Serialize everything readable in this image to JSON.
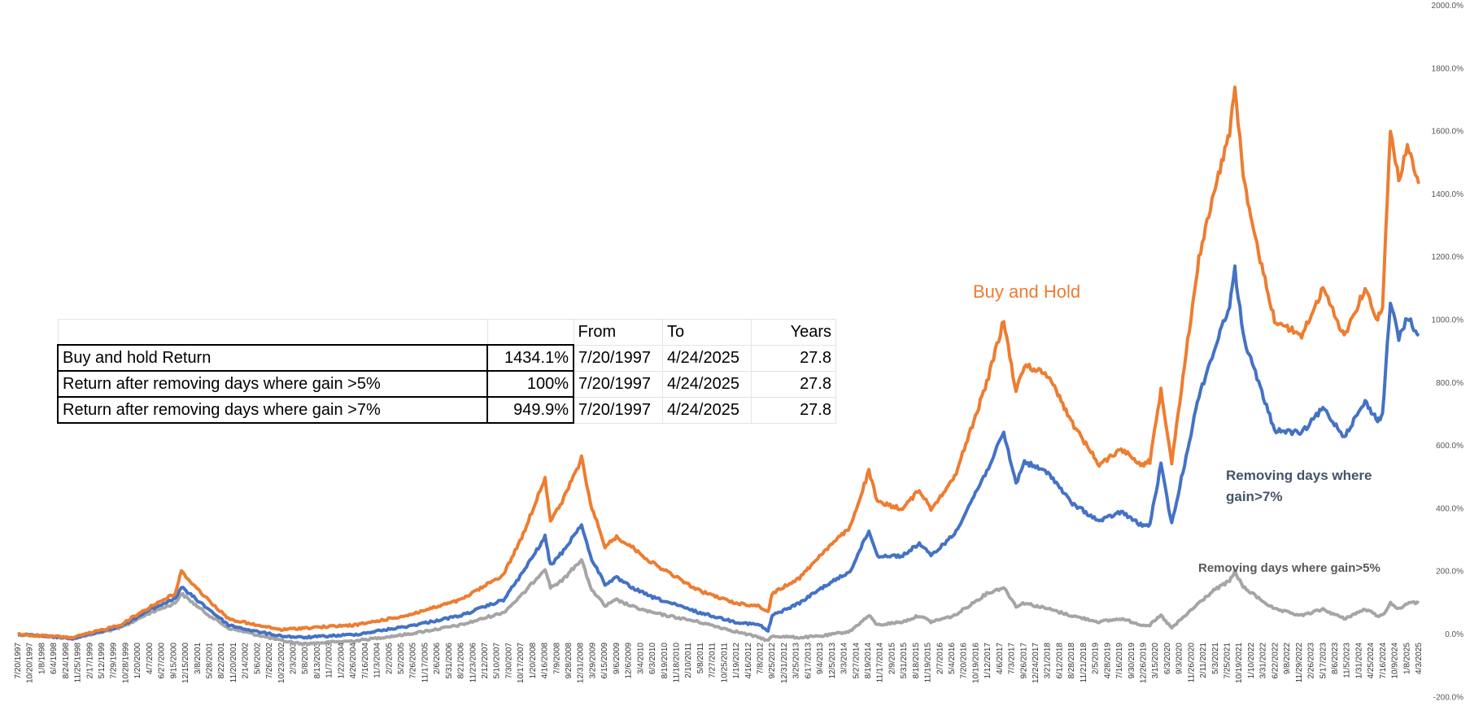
{
  "chart_data": {
    "type": "line",
    "title": "",
    "xlabel": "",
    "ylabel": "",
    "ylim": [
      -200,
      2000
    ],
    "ytick_values": [
      -200,
      0,
      200,
      400,
      600,
      800,
      1000,
      1200,
      1400,
      1600,
      1800,
      2000
    ],
    "ytick_labels": [
      "-200.0%",
      "0.0%",
      "200.0%",
      "400.0%",
      "600.0%",
      "800.0%",
      "1000.0%",
      "1200.0%",
      "1400.0%",
      "1600.0%",
      "1800.0%",
      "2000.0%"
    ],
    "grid": false,
    "legend": "none",
    "xlim": [
      "1997-07-20",
      "2025-04-24"
    ],
    "x_tick_labels": [
      "7/20/1997",
      "10/20/1997",
      "1/8/1998",
      "6/4/1998",
      "8/24/1998",
      "11/25/1998",
      "2/17/1999",
      "5/12/1999",
      "7/29/1999",
      "10/28/1999",
      "1/20/2000",
      "4/7/2000",
      "6/27/2000",
      "9/15/2000",
      "12/15/2000",
      "3/8/2001",
      "5/28/2001",
      "8/22/2001",
      "11/20/2001",
      "2/14/2002",
      "5/6/2002",
      "7/26/2002",
      "10/23/2002",
      "2/3/2003",
      "5/8/2003",
      "8/13/2003",
      "11/7/2003",
      "1/22/2004",
      "4/26/2004",
      "7/16/2004",
      "11/3/2004",
      "2/2/2005",
      "5/2/2005",
      "7/26/2005",
      "11/17/2005",
      "2/6/2006",
      "5/31/2006",
      "8/21/2006",
      "11/23/2006",
      "2/12/2007",
      "5/10/2007",
      "7/30/2007",
      "10/17/2007",
      "1/20/2008",
      "4/16/2008",
      "7/9/2008",
      "9/28/2008",
      "12/31/2008",
      "3/29/2009",
      "6/15/2009",
      "9/6/2009",
      "12/6/2009",
      "3/4/2010",
      "6/3/2010",
      "8/19/2010",
      "11/18/2010",
      "2/10/2011",
      "5/8/2011",
      "7/27/2011",
      "10/25/2011",
      "1/19/2012",
      "4/16/2012",
      "7/8/2012",
      "9/25/2012",
      "12/31/2012",
      "3/25/2013",
      "6/17/2013",
      "9/4/2013",
      "12/5/2013",
      "3/3/2014",
      "5/27/2014",
      "8/19/2014",
      "11/17/2014",
      "2/9/2015",
      "5/31/2015",
      "8/18/2015",
      "11/19/2015",
      "2/7/2016",
      "5/4/2016",
      "7/20/2016",
      "10/19/2016",
      "1/12/2017",
      "4/6/2017",
      "7/3/2017",
      "9/26/2017",
      "12/24/2017",
      "3/21/2018",
      "6/12/2018",
      "8/28/2018",
      "11/21/2018",
      "2/5/2019",
      "4/28/2019",
      "7/16/2019",
      "9/30/2019",
      "12/26/2019",
      "3/15/2020",
      "6/3/2020",
      "9/3/2020",
      "11/26/2020",
      "2/11/2021",
      "5/3/2021",
      "7/25/2021",
      "10/19/2021",
      "1/10/2022",
      "3/31/2022",
      "6/22/2022",
      "9/8/2022",
      "11/29/2022",
      "2/26/2023",
      "5/17/2023",
      "8/6/2023",
      "11/5/2023",
      "1/31/2024",
      "4/25/2024",
      "7/16/2024",
      "10/9/2024",
      "1/8/2025",
      "4/3/2025"
    ],
    "series": [
      {
        "name": "Buy and Hold",
        "color": "#ED7D31",
        "points": [
          [
            "1997-07-20",
            0
          ],
          [
            "1998-08-24",
            -10
          ],
          [
            "1999-07-29",
            30
          ],
          [
            "2000-03-10",
            90
          ],
          [
            "2000-09-01",
            130
          ],
          [
            "2000-10-15",
            200
          ],
          [
            "2001-04-04",
            120
          ],
          [
            "2001-09-21",
            50
          ],
          [
            "2002-04-01",
            30
          ],
          [
            "2002-10-09",
            15
          ],
          [
            "2003-03-11",
            20
          ],
          [
            "2004-04-01",
            30
          ],
          [
            "2005-04-01",
            60
          ],
          [
            "2006-05-01",
            110
          ],
          [
            "2007-03-05",
            190
          ],
          [
            "2007-07-27",
            320
          ],
          [
            "2007-12-31",
            500
          ],
          [
            "2008-02-08",
            360
          ],
          [
            "2008-05-01",
            420
          ],
          [
            "2008-09-20",
            560
          ],
          [
            "2008-11-21",
            420
          ],
          [
            "2009-03-09",
            280
          ],
          [
            "2009-06-01",
            310
          ],
          [
            "2009-09-15",
            280
          ],
          [
            "2010-02-05",
            230
          ],
          [
            "2011-01-15",
            140
          ],
          [
            "2011-10-05",
            100
          ],
          [
            "2012-04-01",
            90
          ],
          [
            "2012-06-01",
            70
          ],
          [
            "2012-07-01",
            130
          ],
          [
            "2013-01-15",
            180
          ],
          [
            "2013-07-01",
            260
          ],
          [
            "2014-01-15",
            340
          ],
          [
            "2014-06-01",
            520
          ],
          [
            "2014-08-01",
            420
          ],
          [
            "2015-02-01",
            400
          ],
          [
            "2015-06-01",
            460
          ],
          [
            "2015-08-24",
            400
          ],
          [
            "2016-02-11",
            500
          ],
          [
            "2016-10-01",
            800
          ],
          [
            "2017-02-01",
            1000
          ],
          [
            "2017-05-01",
            770
          ],
          [
            "2017-07-01",
            860
          ],
          [
            "2018-01-01",
            820
          ],
          [
            "2018-06-01",
            680
          ],
          [
            "2018-12-24",
            540
          ],
          [
            "2019-06-01",
            590
          ],
          [
            "2019-11-01",
            540
          ],
          [
            "2019-12-26",
            550
          ],
          [
            "2020-03-15",
            780
          ],
          [
            "2020-06-01",
            550
          ],
          [
            "2020-12-15",
            1200
          ],
          [
            "2021-04-01",
            1400
          ],
          [
            "2021-07-25",
            1600
          ],
          [
            "2021-09-01",
            1750
          ],
          [
            "2021-11-01",
            1450
          ],
          [
            "2022-01-05",
            1300
          ],
          [
            "2022-06-15",
            1000
          ],
          [
            "2022-12-28",
            950
          ],
          [
            "2023-06-01",
            1100
          ],
          [
            "2023-11-01",
            950
          ],
          [
            "2024-04-01",
            1100
          ],
          [
            "2024-07-01",
            1000
          ],
          [
            "2024-08-05",
            1050
          ],
          [
            "2024-10-01",
            1600
          ],
          [
            "2024-12-01",
            1450
          ],
          [
            "2025-02-01",
            1550
          ],
          [
            "2025-04-24",
            1434
          ]
        ]
      },
      {
        "name": "Removing days where gain>7%",
        "color": "#4472C4",
        "points": [
          [
            "1997-07-20",
            0
          ],
          [
            "1998-08-24",
            -12
          ],
          [
            "1999-07-29",
            25
          ],
          [
            "2000-03-10",
            80
          ],
          [
            "2000-09-01",
            115
          ],
          [
            "2000-10-15",
            150
          ],
          [
            "2001-04-04",
            90
          ],
          [
            "2001-09-21",
            30
          ],
          [
            "2002-04-01",
            10
          ],
          [
            "2002-10-09",
            -5
          ],
          [
            "2003-03-11",
            -10
          ],
          [
            "2004-04-01",
            0
          ],
          [
            "2005-04-01",
            25
          ],
          [
            "2006-05-01",
            60
          ],
          [
            "2007-03-05",
            110
          ],
          [
            "2007-07-27",
            200
          ],
          [
            "2007-12-31",
            310
          ],
          [
            "2008-02-08",
            220
          ],
          [
            "2008-05-01",
            260
          ],
          [
            "2008-09-20",
            350
          ],
          [
            "2008-11-21",
            250
          ],
          [
            "2009-03-09",
            160
          ],
          [
            "2009-06-01",
            180
          ],
          [
            "2009-09-15",
            150
          ],
          [
            "2010-02-05",
            120
          ],
          [
            "2011-01-15",
            70
          ],
          [
            "2011-10-05",
            40
          ],
          [
            "2012-04-01",
            30
          ],
          [
            "2012-06-01",
            10
          ],
          [
            "2012-07-01",
            60
          ],
          [
            "2013-01-15",
            100
          ],
          [
            "2013-07-01",
            150
          ],
          [
            "2014-01-15",
            200
          ],
          [
            "2014-06-01",
            330
          ],
          [
            "2014-08-01",
            250
          ],
          [
            "2015-02-01",
            250
          ],
          [
            "2015-06-01",
            290
          ],
          [
            "2015-08-24",
            250
          ],
          [
            "2016-02-11",
            320
          ],
          [
            "2016-10-01",
            520
          ],
          [
            "2017-02-01",
            640
          ],
          [
            "2017-05-01",
            480
          ],
          [
            "2017-07-01",
            550
          ],
          [
            "2018-01-01",
            510
          ],
          [
            "2018-06-01",
            420
          ],
          [
            "2018-12-24",
            360
          ],
          [
            "2019-06-01",
            390
          ],
          [
            "2019-11-01",
            345
          ],
          [
            "2019-12-26",
            350
          ],
          [
            "2020-03-15",
            540
          ],
          [
            "2020-06-01",
            350
          ],
          [
            "2020-12-15",
            760
          ],
          [
            "2021-04-01",
            900
          ],
          [
            "2021-07-25",
            1050
          ],
          [
            "2021-09-01",
            1160
          ],
          [
            "2021-11-01",
            950
          ],
          [
            "2022-01-05",
            860
          ],
          [
            "2022-06-15",
            650
          ],
          [
            "2022-12-28",
            640
          ],
          [
            "2023-06-01",
            720
          ],
          [
            "2023-11-01",
            630
          ],
          [
            "2024-04-01",
            740
          ],
          [
            "2024-07-01",
            680
          ],
          [
            "2024-08-05",
            700
          ],
          [
            "2024-10-01",
            1060
          ],
          [
            "2024-12-01",
            940
          ],
          [
            "2025-02-01",
            1010
          ],
          [
            "2025-04-24",
            950
          ]
        ]
      },
      {
        "name": "Removing days where gain>5%",
        "color": "#A5A5A5",
        "points": [
          [
            "1997-07-20",
            0
          ],
          [
            "1998-08-24",
            -12
          ],
          [
            "1999-07-29",
            20
          ],
          [
            "2000-03-10",
            70
          ],
          [
            "2000-09-01",
            100
          ],
          [
            "2000-10-15",
            130
          ],
          [
            "2001-04-04",
            70
          ],
          [
            "2001-09-21",
            20
          ],
          [
            "2002-04-01",
            0
          ],
          [
            "2002-10-09",
            -20
          ],
          [
            "2003-03-11",
            -30
          ],
          [
            "2004-04-01",
            -20
          ],
          [
            "2005-04-01",
            0
          ],
          [
            "2006-05-01",
            30
          ],
          [
            "2007-03-05",
            70
          ],
          [
            "2007-07-27",
            130
          ],
          [
            "2007-12-31",
            210
          ],
          [
            "2008-02-08",
            150
          ],
          [
            "2008-05-01",
            170
          ],
          [
            "2008-09-20",
            240
          ],
          [
            "2008-11-21",
            150
          ],
          [
            "2009-03-09",
            90
          ],
          [
            "2009-06-01",
            110
          ],
          [
            "2009-09-15",
            90
          ],
          [
            "2010-02-05",
            70
          ],
          [
            "2011-01-15",
            40
          ],
          [
            "2011-10-05",
            10
          ],
          [
            "2012-04-01",
            -10
          ],
          [
            "2012-06-01",
            -20
          ],
          [
            "2012-07-01",
            -5
          ],
          [
            "2013-01-15",
            -10
          ],
          [
            "2013-07-01",
            -5
          ],
          [
            "2014-01-15",
            10
          ],
          [
            "2014-06-01",
            60
          ],
          [
            "2014-08-01",
            30
          ],
          [
            "2015-02-01",
            40
          ],
          [
            "2015-06-01",
            60
          ],
          [
            "2015-08-24",
            40
          ],
          [
            "2016-02-11",
            60
          ],
          [
            "2016-10-01",
            130
          ],
          [
            "2017-02-01",
            150
          ],
          [
            "2017-05-01",
            90
          ],
          [
            "2017-07-01",
            100
          ],
          [
            "2018-01-01",
            80
          ],
          [
            "2018-06-01",
            60
          ],
          [
            "2018-12-24",
            40
          ],
          [
            "2019-06-01",
            50
          ],
          [
            "2019-11-01",
            30
          ],
          [
            "2019-12-26",
            30
          ],
          [
            "2020-03-15",
            60
          ],
          [
            "2020-06-01",
            20
          ],
          [
            "2020-12-15",
            100
          ],
          [
            "2021-04-01",
            140
          ],
          [
            "2021-07-25",
            170
          ],
          [
            "2021-09-01",
            200
          ],
          [
            "2021-11-01",
            150
          ],
          [
            "2022-01-05",
            130
          ],
          [
            "2022-06-15",
            80
          ],
          [
            "2022-12-28",
            60
          ],
          [
            "2023-06-01",
            80
          ],
          [
            "2023-11-01",
            50
          ],
          [
            "2024-04-01",
            80
          ],
          [
            "2024-07-01",
            60
          ],
          [
            "2024-08-05",
            60
          ],
          [
            "2024-10-01",
            100
          ],
          [
            "2024-12-01",
            80
          ],
          [
            "2025-02-01",
            100
          ],
          [
            "2025-04-24",
            100
          ]
        ]
      }
    ],
    "annotations": [
      {
        "text": "Buy and Hold",
        "color": "#ED7D31"
      },
      {
        "line1": "Removing days where",
        "line2": "gain>7%",
        "color": "#44546A"
      },
      {
        "text": "Removing days where gain>5%",
        "color": "#595959"
      }
    ]
  },
  "table": {
    "headers": [
      "",
      "",
      "From",
      "To",
      "Years"
    ],
    "rows": [
      {
        "label": "Buy and hold Return",
        "ret": "1434.1%",
        "from": "7/20/1997",
        "to": "4/24/2025",
        "years": "27.8"
      },
      {
        "label": "Return after removing days where gain >5%",
        "ret": "100%",
        "from": "7/20/1997",
        "to": "4/24/2025",
        "years": "27.8"
      },
      {
        "label": "Return after removing days where gain >7%",
        "ret": "949.9%",
        "from": "7/20/1997",
        "to": "4/24/2025",
        "years": "27.8"
      }
    ]
  }
}
